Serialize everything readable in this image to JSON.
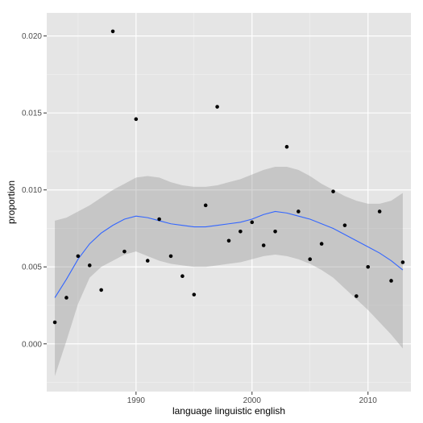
{
  "chart_data": {
    "type": "scatter",
    "xlabel": "language linguistic english",
    "ylabel": "proportion",
    "xlim": [
      1982.3,
      2013.7
    ],
    "ylim": [
      -0.0031,
      0.0215
    ],
    "x_ticks": [
      1990,
      2000,
      2010
    ],
    "x_tick_labels": [
      "1990",
      "2000",
      "2010"
    ],
    "y_ticks": [
      0.0,
      0.005,
      0.01,
      0.015,
      0.02
    ],
    "y_tick_labels": [
      "0.000",
      "0.005",
      "0.010",
      "0.015",
      "0.020"
    ],
    "grid": true,
    "legend": "none",
    "points": [
      {
        "x": 1983,
        "y": 0.0014
      },
      {
        "x": 1984,
        "y": 0.003
      },
      {
        "x": 1985,
        "y": 0.0057
      },
      {
        "x": 1986,
        "y": 0.0051
      },
      {
        "x": 1987,
        "y": 0.0035
      },
      {
        "x": 1988,
        "y": 0.0203
      },
      {
        "x": 1989,
        "y": 0.006
      },
      {
        "x": 1990,
        "y": 0.0146
      },
      {
        "x": 1991,
        "y": 0.0054
      },
      {
        "x": 1992,
        "y": 0.0081
      },
      {
        "x": 1993,
        "y": 0.0057
      },
      {
        "x": 1994,
        "y": 0.0044
      },
      {
        "x": 1995,
        "y": 0.0032
      },
      {
        "x": 1996,
        "y": 0.009
      },
      {
        "x": 1997,
        "y": 0.0154
      },
      {
        "x": 1998,
        "y": 0.0067
      },
      {
        "x": 1999,
        "y": 0.0073
      },
      {
        "x": 2000,
        "y": 0.0079
      },
      {
        "x": 2001,
        "y": 0.0064
      },
      {
        "x": 2002,
        "y": 0.0073
      },
      {
        "x": 2003,
        "y": 0.0128
      },
      {
        "x": 2004,
        "y": 0.0086
      },
      {
        "x": 2005,
        "y": 0.0055
      },
      {
        "x": 2006,
        "y": 0.0065
      },
      {
        "x": 2007,
        "y": 0.0099
      },
      {
        "x": 2008,
        "y": 0.0077
      },
      {
        "x": 2009,
        "y": 0.0031
      },
      {
        "x": 2010,
        "y": 0.005
      },
      {
        "x": 2011,
        "y": 0.0086
      },
      {
        "x": 2012,
        "y": 0.0041
      },
      {
        "x": 2013,
        "y": 0.0053
      }
    ],
    "smooth": {
      "x": [
        1983,
        1984,
        1985,
        1986,
        1987,
        1988,
        1989,
        1990,
        1991,
        1992,
        1993,
        1994,
        1995,
        1996,
        1997,
        1998,
        1999,
        2000,
        2001,
        2002,
        2003,
        2004,
        2005,
        2006,
        2007,
        2008,
        2009,
        2010,
        2011,
        2012,
        2013
      ],
      "y": [
        0.003,
        0.0042,
        0.0055,
        0.0065,
        0.0072,
        0.0077,
        0.0081,
        0.0083,
        0.0082,
        0.008,
        0.0078,
        0.0077,
        0.0076,
        0.0076,
        0.0077,
        0.0078,
        0.0079,
        0.0081,
        0.0084,
        0.0086,
        0.0085,
        0.0083,
        0.0081,
        0.0078,
        0.0075,
        0.0071,
        0.0067,
        0.0063,
        0.0059,
        0.0054,
        0.0048
      ],
      "upper": [
        0.008,
        0.0082,
        0.0086,
        0.009,
        0.0095,
        0.01,
        0.0104,
        0.0108,
        0.0109,
        0.0108,
        0.0105,
        0.0103,
        0.0102,
        0.0102,
        0.0103,
        0.0105,
        0.0107,
        0.011,
        0.0113,
        0.0115,
        0.0115,
        0.0113,
        0.0109,
        0.0104,
        0.01,
        0.0096,
        0.0093,
        0.0091,
        0.0091,
        0.0093,
        0.0098
      ],
      "lower": [
        -0.0021,
        0.0002,
        0.0026,
        0.0043,
        0.005,
        0.0054,
        0.0058,
        0.006,
        0.0057,
        0.0054,
        0.0052,
        0.0051,
        0.005,
        0.005,
        0.0051,
        0.0052,
        0.0053,
        0.0055,
        0.0057,
        0.0058,
        0.0057,
        0.0055,
        0.0052,
        0.0048,
        0.0043,
        0.0036,
        0.0029,
        0.0022,
        0.0014,
        0.0006,
        -0.0003
      ]
    },
    "colors": {
      "panel": "#e5e5e5",
      "grid_major": "#ffffff",
      "grid_minor": "#f2f2f2",
      "point": "#000000",
      "line": "#3366ff",
      "ribbon": "#999999"
    }
  }
}
